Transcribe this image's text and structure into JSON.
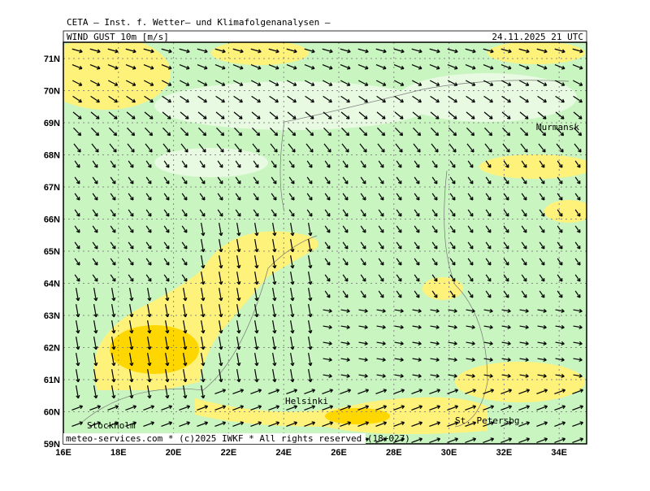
{
  "header": {
    "source": "CETA – Inst. f. Wetter– und Klimafolgenanalysen –",
    "parameter": "WIND GUST 10m [m/s]",
    "valid_time": "24.11.2025 21 UTC"
  },
  "map": {
    "lat_labels": [
      "71N",
      "70N",
      "69N",
      "68N",
      "67N",
      "66N",
      "65N",
      "64N",
      "63N",
      "62N",
      "61N",
      "60N",
      "59N"
    ],
    "lon_labels": [
      "16E",
      "18E",
      "20E",
      "22E",
      "24E",
      "26E",
      "28E",
      "30E",
      "32E",
      "34E"
    ],
    "places": [
      "Murmansk",
      "Helsinki",
      "Stockholm",
      "St. Petersbg."
    ]
  },
  "footer": "meteo-services.com * (c)2025 IWKF * All rights reserved (18+027)"
}
